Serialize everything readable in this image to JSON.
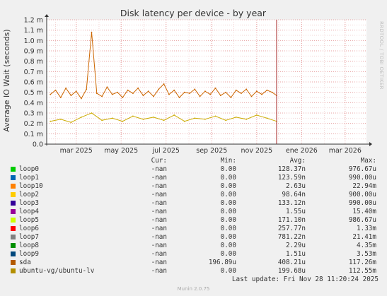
{
  "chart_data": {
    "type": "line",
    "title": "Disk latency per device - by year",
    "ylabel": "Average IO Wait (seconds)",
    "side_label": "RRDTOOL / TOBI OETIKER",
    "ylim": [
      0,
      0.0012
    ],
    "y_ticks": [
      {
        "value": 0,
        "label": "0.0"
      },
      {
        "value": 0.0001,
        "label": "0.1 m"
      },
      {
        "value": 0.0002,
        "label": "0.2 m"
      },
      {
        "value": 0.0003,
        "label": "0.3 m"
      },
      {
        "value": 0.0004,
        "label": "0.4 m"
      },
      {
        "value": 0.0005,
        "label": "0.5 m"
      },
      {
        "value": 0.0006,
        "label": "0.6 m"
      },
      {
        "value": 0.0007,
        "label": "0.7 m"
      },
      {
        "value": 0.0008,
        "label": "0.8 m"
      },
      {
        "value": 0.0009,
        "label": "0.9 m"
      },
      {
        "value": 0.001,
        "label": "1.0 m"
      },
      {
        "value": 0.0011,
        "label": "1.1 m"
      },
      {
        "value": 0.0012,
        "label": "1.2 m"
      }
    ],
    "xlim": [
      "2025-01-20",
      "2026-03-30"
    ],
    "x_ticks": [
      {
        "date": "2025-03-01",
        "label": "mar 2025"
      },
      {
        "date": "2025-05-01",
        "label": "may 2025"
      },
      {
        "date": "2025-07-01",
        "label": "jul 2025"
      },
      {
        "date": "2025-09-01",
        "label": "sep 2025"
      },
      {
        "date": "2025-11-01",
        "label": "nov 2025"
      },
      {
        "date": "2026-01-01",
        "label": "ene 2026"
      },
      {
        "date": "2026-03-01",
        "label": "mar 2026"
      }
    ],
    "current_marker": "2025-11-28",
    "series_sda": {
      "color": "#cc6600",
      "x": [
        "2025-01-25",
        "2025-02-01",
        "2025-02-08",
        "2025-02-15",
        "2025-02-22",
        "2025-03-01",
        "2025-03-08",
        "2025-03-15",
        "2025-03-22",
        "2025-03-29",
        "2025-04-05",
        "2025-04-12",
        "2025-04-19",
        "2025-04-26",
        "2025-05-03",
        "2025-05-10",
        "2025-05-17",
        "2025-05-24",
        "2025-05-31",
        "2025-06-07",
        "2025-06-14",
        "2025-06-21",
        "2025-06-28",
        "2025-07-05",
        "2025-07-12",
        "2025-07-19",
        "2025-07-26",
        "2025-08-02",
        "2025-08-09",
        "2025-08-16",
        "2025-08-23",
        "2025-08-30",
        "2025-09-06",
        "2025-09-13",
        "2025-09-20",
        "2025-09-27",
        "2025-10-04",
        "2025-10-11",
        "2025-10-18",
        "2025-10-25",
        "2025-11-01",
        "2025-11-08",
        "2025-11-15",
        "2025-11-22",
        "2025-11-28"
      ],
      "values": [
        0.00048,
        0.00052,
        0.00045,
        0.00054,
        0.00047,
        0.00051,
        0.00044,
        0.00053,
        0.00108,
        0.00049,
        0.00046,
        0.00055,
        0.00048,
        0.0005,
        0.00045,
        0.00052,
        0.00049,
        0.00054,
        0.00047,
        0.00051,
        0.00046,
        0.00053,
        0.00058,
        0.00048,
        0.00052,
        0.00045,
        0.0005,
        0.00049,
        0.00053,
        0.00046,
        0.00051,
        0.00048,
        0.00054,
        0.00047,
        0.0005,
        0.00045,
        0.00052,
        0.00049,
        0.00053,
        0.00046,
        0.00051,
        0.00048,
        0.00052,
        0.0005,
        0.00047
      ]
    },
    "series_lv": {
      "color": "#ccaa00",
      "x": [
        "2025-01-25",
        "2025-02-08",
        "2025-02-22",
        "2025-03-08",
        "2025-03-22",
        "2025-04-05",
        "2025-04-19",
        "2025-05-03",
        "2025-05-17",
        "2025-05-31",
        "2025-06-14",
        "2025-06-28",
        "2025-07-12",
        "2025-07-26",
        "2025-08-09",
        "2025-08-23",
        "2025-09-06",
        "2025-09-20",
        "2025-10-04",
        "2025-10-18",
        "2025-11-01",
        "2025-11-15",
        "2025-11-28"
      ],
      "values": [
        0.00022,
        0.00024,
        0.00021,
        0.00026,
        0.0003,
        0.00023,
        0.00025,
        0.00022,
        0.00027,
        0.00024,
        0.00026,
        0.00023,
        0.00028,
        0.00022,
        0.00025,
        0.00024,
        0.00027,
        0.00023,
        0.00026,
        0.00024,
        0.00028,
        0.00025,
        0.00022
      ]
    },
    "legend_headers": {
      "cur": "Cur:",
      "min": "Min:",
      "avg": "Avg:",
      "max": "Max:"
    },
    "legend": [
      {
        "name": "loop0",
        "color": "#00cc00",
        "cur": "-nan",
        "min": "0.00",
        "avg": "128.37n",
        "max": "976.67u"
      },
      {
        "name": "loop1",
        "color": "#0066b3",
        "cur": "-nan",
        "min": "0.00",
        "avg": "123.59n",
        "max": "990.00u"
      },
      {
        "name": "loop10",
        "color": "#ff8000",
        "cur": "-nan",
        "min": "0.00",
        "avg": "2.63u",
        "max": "22.94m"
      },
      {
        "name": "loop2",
        "color": "#ffcc00",
        "cur": "-nan",
        "min": "0.00",
        "avg": "98.64n",
        "max": "900.00u"
      },
      {
        "name": "loop3",
        "color": "#330099",
        "cur": "-nan",
        "min": "0.00",
        "avg": "133.12n",
        "max": "990.00u"
      },
      {
        "name": "loop4",
        "color": "#990099",
        "cur": "-nan",
        "min": "0.00",
        "avg": "1.55u",
        "max": "15.40m"
      },
      {
        "name": "loop5",
        "color": "#ccff00",
        "cur": "-nan",
        "min": "0.00",
        "avg": "171.10n",
        "max": "986.67u"
      },
      {
        "name": "loop6",
        "color": "#ff0000",
        "cur": "-nan",
        "min": "0.00",
        "avg": "257.77n",
        "max": "1.33m"
      },
      {
        "name": "loop7",
        "color": "#808080",
        "cur": "-nan",
        "min": "0.00",
        "avg": "781.22n",
        "max": "21.41m"
      },
      {
        "name": "loop8",
        "color": "#008f00",
        "cur": "-nan",
        "min": "0.00",
        "avg": "2.29u",
        "max": "4.35m"
      },
      {
        "name": "loop9",
        "color": "#00487d",
        "cur": "-nan",
        "min": "0.00",
        "avg": "1.51u",
        "max": "3.53m"
      },
      {
        "name": "sda",
        "color": "#b35a00",
        "cur": "-nan",
        "min": "196.89u",
        "avg": "408.21u",
        "max": "117.26m"
      },
      {
        "name": "ubuntu-vg/ubuntu-lv",
        "color": "#b38f00",
        "cur": "-nan",
        "min": "0.00",
        "avg": "199.68u",
        "max": "112.55m"
      }
    ]
  },
  "footer": {
    "last_update": "Last update: Fri Nov 28 11:20:24 2025",
    "munin": "Munin 2.0.75"
  }
}
